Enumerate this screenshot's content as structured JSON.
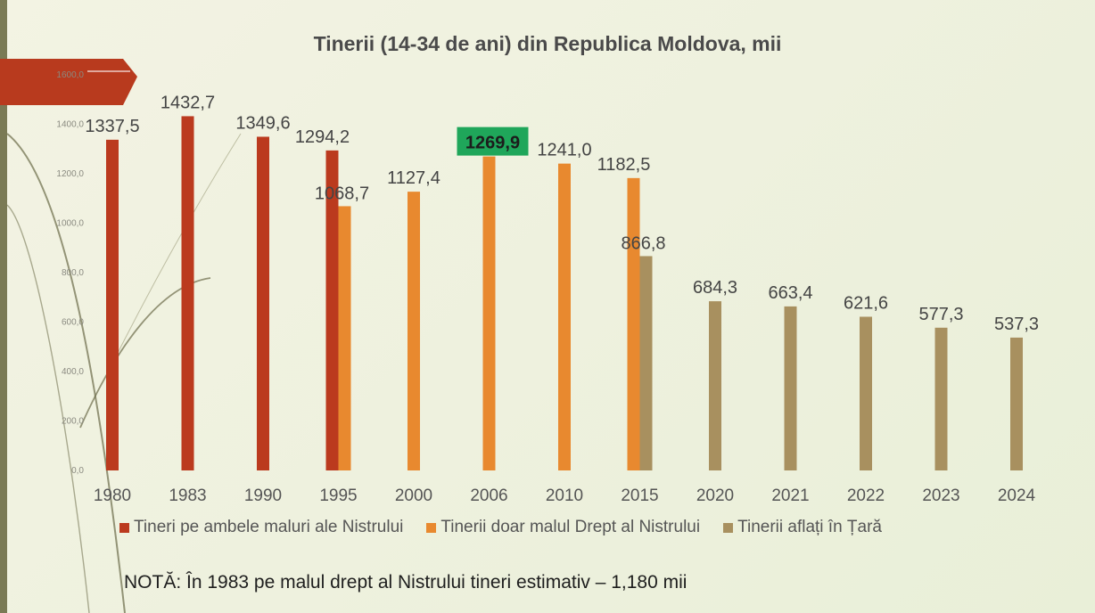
{
  "slide": {
    "note": "NOTĂ: În 1983 pe malul drept al Nistrului tineri estimativ – 1,180 mii"
  },
  "chart_data": {
    "type": "bar",
    "title": "Tinerii (14-34 de ani) din Republica Moldova, mii",
    "categories": [
      "1980",
      "1983",
      "1990",
      "1995",
      "2000",
      "2006",
      "2010",
      "2015",
      "2020",
      "2021",
      "2022",
      "2023",
      "2024"
    ],
    "series": [
      {
        "name": "Tineri pe ambele maluri ale Nistrului",
        "color": "#bb3a1e",
        "values": [
          1337.5,
          1432.7,
          1349.6,
          1294.2,
          null,
          null,
          null,
          null,
          null,
          null,
          null,
          null,
          null
        ],
        "labels": [
          "1337,5",
          "1432,7",
          "1349,6",
          "1294,2",
          "",
          "",
          "",
          "",
          "",
          "",
          "",
          "",
          ""
        ]
      },
      {
        "name": "Tinerii doar malul Drept al Nistrului",
        "color": "#e8892f",
        "values": [
          null,
          null,
          null,
          1068.7,
          1127.4,
          1269.9,
          1241.0,
          1182.5,
          null,
          null,
          null,
          null,
          null
        ],
        "labels": [
          "",
          "",
          "",
          "1068,7",
          "1127,4",
          "1269,9",
          "1241,0",
          "1182,5",
          "",
          "",
          "",
          "",
          ""
        ]
      },
      {
        "name": "Tinerii aflați în Țară",
        "color": "#a8905f",
        "values": [
          null,
          null,
          null,
          null,
          null,
          null,
          null,
          866.8,
          684.3,
          663.4,
          621.6,
          577.3,
          537.3
        ],
        "labels": [
          "",
          "",
          "",
          "",
          "",
          "",
          "",
          "866,8",
          "684,3",
          "663,4",
          "621,6",
          "577,3",
          "537,3"
        ]
      }
    ],
    "highlight": {
      "category": "2006",
      "label": "1269,9",
      "color": "#1fa65a"
    },
    "ylim": [
      0,
      1600
    ],
    "yticks": [
      "0,0",
      "200,0",
      "400,0",
      "600,0",
      "800,0",
      "1000,0",
      "1200,0",
      "1400,0",
      "1600,0"
    ],
    "legend": "bottom",
    "grid": false
  }
}
